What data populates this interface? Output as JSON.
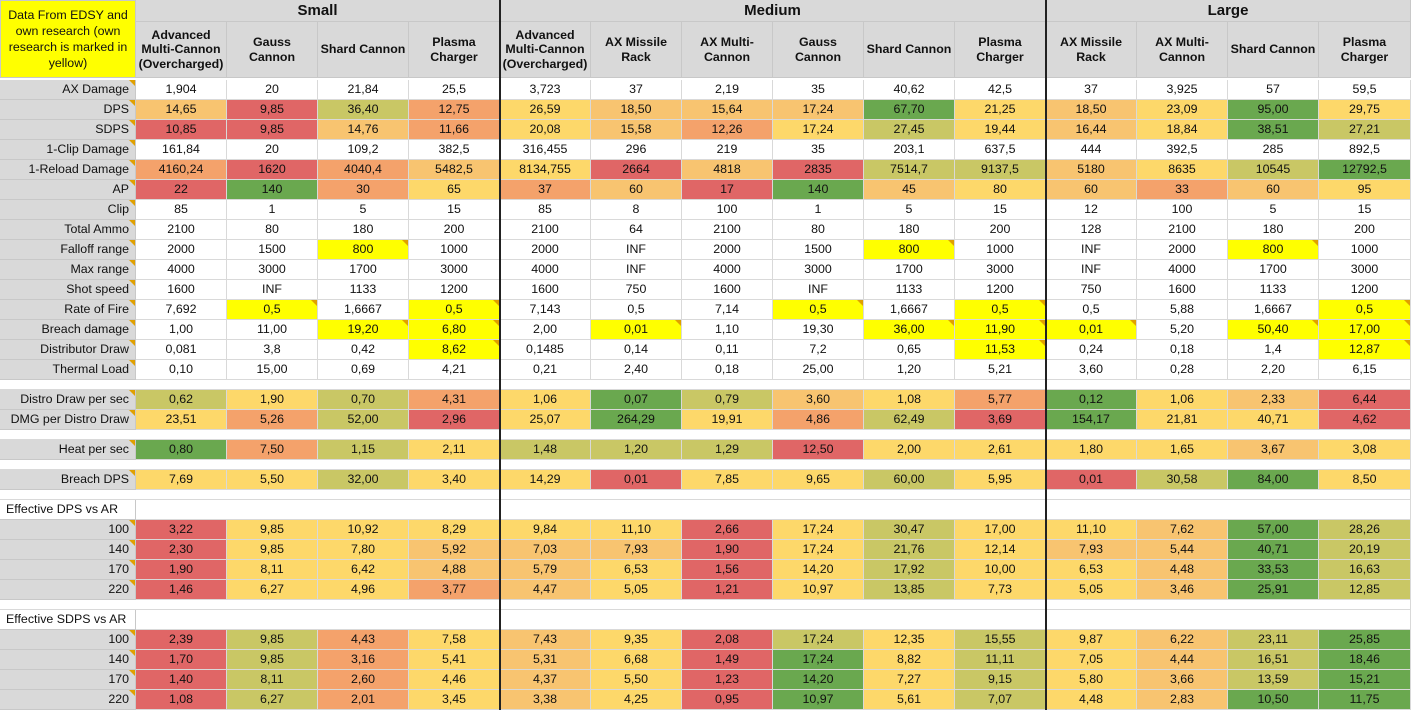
{
  "note": "Data From EDSY and own research (own research is marked in yellow)",
  "groups": [
    {
      "name": "Small",
      "span": 4
    },
    {
      "name": "Medium",
      "span": 6
    },
    {
      "name": "Large",
      "span": 4
    }
  ],
  "weapons": [
    "Advanced Multi-Cannon (Overcharged)",
    "Gauss Cannon",
    "Shard Cannon",
    "Plasma Charger",
    "Advanced Multi-Cannon (Overcharged)",
    "AX Missile Rack",
    "AX Multi-Cannon",
    "Gauss Cannon",
    "Shard Cannon",
    "Plasma Charger",
    "AX Missile Rack",
    "AX Multi-Cannon",
    "Shard Cannon",
    "Plasma Charger"
  ],
  "colors": {
    "red": "#e06666",
    "orange": "#f4a26b",
    "lorange": "#f8c470",
    "yellow": "#fdd86a",
    "lgreen": "#c9c765",
    "green": "#6aa84f",
    "hl": "#ffff00"
  },
  "rows": [
    {
      "type": "data",
      "label": "AX Damage",
      "values": [
        "1,904",
        "20",
        "21,84",
        "25,5",
        "3,723",
        "37",
        "2,19",
        "35",
        "40,62",
        "42,5",
        "37",
        "3,925",
        "57",
        "59,5"
      ]
    },
    {
      "type": "data",
      "label": "DPS",
      "values": [
        "14,65",
        "9,85",
        "36,40",
        "12,75",
        "26,59",
        "18,50",
        "15,64",
        "17,24",
        "67,70",
        "21,25",
        "18,50",
        "23,09",
        "95,00",
        "29,75"
      ],
      "colors": [
        "lorange",
        "red",
        "lgreen",
        "orange",
        "yellow",
        "lorange",
        "lorange",
        "lorange",
        "green",
        "yellow",
        "lorange",
        "yellow",
        "green",
        "yellow"
      ]
    },
    {
      "type": "data",
      "label": "SDPS",
      "values": [
        "10,85",
        "9,85",
        "14,76",
        "11,66",
        "20,08",
        "15,58",
        "12,26",
        "17,24",
        "27,45",
        "19,44",
        "16,44",
        "18,84",
        "38,51",
        "27,21"
      ],
      "colors": [
        "red",
        "red",
        "lorange",
        "orange",
        "yellow",
        "lorange",
        "orange",
        "yellow",
        "lgreen",
        "yellow",
        "lorange",
        "yellow",
        "green",
        "lgreen"
      ]
    },
    {
      "type": "data",
      "label": "1-Clip Damage",
      "values": [
        "161,84",
        "20",
        "109,2",
        "382,5",
        "316,455",
        "296",
        "219",
        "35",
        "203,1",
        "637,5",
        "444",
        "392,5",
        "285",
        "892,5"
      ]
    },
    {
      "type": "data",
      "label": "1-Reload Damage",
      "values": [
        "4160,24",
        "1620",
        "4040,4",
        "5482,5",
        "8134,755",
        "2664",
        "4818",
        "2835",
        "7514,7",
        "9137,5",
        "5180",
        "8635",
        "10545",
        "12792,5"
      ],
      "colors": [
        "orange",
        "red",
        "orange",
        "lorange",
        "yellow",
        "red",
        "lorange",
        "red",
        "lgreen",
        "lgreen",
        "lorange",
        "yellow",
        "lgreen",
        "green"
      ]
    },
    {
      "type": "data",
      "label": "AP",
      "values": [
        "22",
        "140",
        "30",
        "65",
        "37",
        "60",
        "17",
        "140",
        "45",
        "80",
        "60",
        "33",
        "60",
        "95"
      ],
      "colors": [
        "red",
        "green",
        "orange",
        "yellow",
        "orange",
        "lorange",
        "red",
        "green",
        "lorange",
        "yellow",
        "lorange",
        "orange",
        "lorange",
        "yellow"
      ]
    },
    {
      "type": "data",
      "label": "Clip",
      "values": [
        "85",
        "1",
        "5",
        "15",
        "85",
        "8",
        "100",
        "1",
        "5",
        "15",
        "12",
        "100",
        "5",
        "15"
      ]
    },
    {
      "type": "data",
      "label": "Total Ammo",
      "values": [
        "2100",
        "80",
        "180",
        "200",
        "2100",
        "64",
        "2100",
        "80",
        "180",
        "200",
        "128",
        "2100",
        "180",
        "200"
      ]
    },
    {
      "type": "data",
      "label": "Falloff range",
      "values": [
        "2000",
        "1500",
        "800",
        "1000",
        "2000",
        "INF",
        "2000",
        "1500",
        "800",
        "1000",
        "INF",
        "2000",
        "800",
        "1000"
      ],
      "hl": [
        2,
        8,
        12
      ]
    },
    {
      "type": "data",
      "label": "Max range",
      "values": [
        "4000",
        "3000",
        "1700",
        "3000",
        "4000",
        "INF",
        "4000",
        "3000",
        "1700",
        "3000",
        "INF",
        "4000",
        "1700",
        "3000"
      ]
    },
    {
      "type": "data",
      "label": "Shot speed",
      "values": [
        "1600",
        "INF",
        "1133",
        "1200",
        "1600",
        "750",
        "1600",
        "INF",
        "1133",
        "1200",
        "750",
        "1600",
        "1133",
        "1200"
      ]
    },
    {
      "type": "data",
      "label": "Rate of Fire",
      "values": [
        "7,692",
        "0,5",
        "1,6667",
        "0,5",
        "7,143",
        "0,5",
        "7,14",
        "0,5",
        "1,6667",
        "0,5",
        "0,5",
        "5,88",
        "1,6667",
        "0,5"
      ],
      "hl": [
        1,
        3,
        7,
        9,
        13
      ]
    },
    {
      "type": "data",
      "label": "Breach damage",
      "values": [
        "1,00",
        "11,00",
        "19,20",
        "6,80",
        "2,00",
        "0,01",
        "1,10",
        "19,30",
        "36,00",
        "11,90",
        "0,01",
        "5,20",
        "50,40",
        "17,00"
      ],
      "hl": [
        2,
        3,
        5,
        8,
        9,
        10,
        12,
        13
      ]
    },
    {
      "type": "data",
      "label": "Distributor Draw",
      "values": [
        "0,081",
        "3,8",
        "0,42",
        "8,62",
        "0,1485",
        "0,14",
        "0,11",
        "7,2",
        "0,65",
        "11,53",
        "0,24",
        "0,18",
        "1,4",
        "12,87"
      ],
      "hl": [
        3,
        9,
        13
      ]
    },
    {
      "type": "data",
      "label": "Thermal Load",
      "values": [
        "0,10",
        "15,00",
        "0,69",
        "4,21",
        "0,21",
        "2,40",
        "0,18",
        "25,00",
        "1,20",
        "5,21",
        "3,60",
        "0,28",
        "2,20",
        "6,15"
      ]
    },
    {
      "type": "blank"
    },
    {
      "type": "data",
      "label": "Distro Draw per sec",
      "values": [
        "0,62",
        "1,90",
        "0,70",
        "4,31",
        "1,06",
        "0,07",
        "0,79",
        "3,60",
        "1,08",
        "5,77",
        "0,12",
        "1,06",
        "2,33",
        "6,44"
      ],
      "colors": [
        "lgreen",
        "yellow",
        "lgreen",
        "orange",
        "yellow",
        "green",
        "lgreen",
        "lorange",
        "yellow",
        "orange",
        "green",
        "yellow",
        "lorange",
        "red"
      ]
    },
    {
      "type": "data",
      "label": "DMG per Distro Draw",
      "values": [
        "23,51",
        "5,26",
        "52,00",
        "2,96",
        "25,07",
        "264,29",
        "19,91",
        "4,86",
        "62,49",
        "3,69",
        "154,17",
        "21,81",
        "40,71",
        "4,62"
      ],
      "colors": [
        "yellow",
        "orange",
        "lgreen",
        "red",
        "yellow",
        "green",
        "yellow",
        "orange",
        "lgreen",
        "red",
        "green",
        "yellow",
        "yellow",
        "red"
      ]
    },
    {
      "type": "blank"
    },
    {
      "type": "data",
      "label": "Heat per sec",
      "values": [
        "0,80",
        "7,50",
        "1,15",
        "2,11",
        "1,48",
        "1,20",
        "1,29",
        "12,50",
        "2,00",
        "2,61",
        "1,80",
        "1,65",
        "3,67",
        "3,08"
      ],
      "colors": [
        "green",
        "orange",
        "lgreen",
        "yellow",
        "lgreen",
        "lgreen",
        "lgreen",
        "red",
        "yellow",
        "yellow",
        "yellow",
        "yellow",
        "lorange",
        "yellow"
      ]
    },
    {
      "type": "blank"
    },
    {
      "type": "data",
      "label": "Breach DPS",
      "values": [
        "7,69",
        "5,50",
        "32,00",
        "3,40",
        "14,29",
        "0,01",
        "7,85",
        "9,65",
        "60,00",
        "5,95",
        "0,01",
        "30,58",
        "84,00",
        "8,50"
      ],
      "colors": [
        "yellow",
        "yellow",
        "lgreen",
        "yellow",
        "yellow",
        "red",
        "yellow",
        "yellow",
        "lgreen",
        "yellow",
        "red",
        "lgreen",
        "green",
        "yellow"
      ]
    },
    {
      "type": "blank"
    },
    {
      "type": "section",
      "label": "Effective DPS vs AR"
    },
    {
      "type": "data",
      "label": "100",
      "values": [
        "3,22",
        "9,85",
        "10,92",
        "8,29",
        "9,84",
        "11,10",
        "2,66",
        "17,24",
        "30,47",
        "17,00",
        "11,10",
        "7,62",
        "57,00",
        "28,26"
      ],
      "colors": [
        "red",
        "yellow",
        "yellow",
        "yellow",
        "yellow",
        "yellow",
        "red",
        "yellow",
        "lgreen",
        "yellow",
        "yellow",
        "lorange",
        "green",
        "lgreen"
      ]
    },
    {
      "type": "data",
      "label": "140",
      "values": [
        "2,30",
        "9,85",
        "7,80",
        "5,92",
        "7,03",
        "7,93",
        "1,90",
        "17,24",
        "21,76",
        "12,14",
        "7,93",
        "5,44",
        "40,71",
        "20,19"
      ],
      "colors": [
        "red",
        "yellow",
        "yellow",
        "lorange",
        "lorange",
        "lorange",
        "red",
        "yellow",
        "lgreen",
        "yellow",
        "lorange",
        "lorange",
        "green",
        "lgreen"
      ]
    },
    {
      "type": "data",
      "label": "170",
      "values": [
        "1,90",
        "8,11",
        "6,42",
        "4,88",
        "5,79",
        "6,53",
        "1,56",
        "14,20",
        "17,92",
        "10,00",
        "6,53",
        "4,48",
        "33,53",
        "16,63"
      ],
      "colors": [
        "red",
        "yellow",
        "yellow",
        "lorange",
        "lorange",
        "yellow",
        "red",
        "yellow",
        "lgreen",
        "yellow",
        "yellow",
        "lorange",
        "green",
        "lgreen"
      ]
    },
    {
      "type": "data",
      "label": "220",
      "values": [
        "1,46",
        "6,27",
        "4,96",
        "3,77",
        "4,47",
        "5,05",
        "1,21",
        "10,97",
        "13,85",
        "7,73",
        "5,05",
        "3,46",
        "25,91",
        "12,85"
      ],
      "colors": [
        "red",
        "yellow",
        "yellow",
        "orange",
        "lorange",
        "yellow",
        "red",
        "yellow",
        "lgreen",
        "yellow",
        "yellow",
        "lorange",
        "green",
        "lgreen"
      ]
    },
    {
      "type": "blank"
    },
    {
      "type": "section",
      "label": "Effective SDPS vs AR"
    },
    {
      "type": "data",
      "label": "100",
      "values": [
        "2,39",
        "9,85",
        "4,43",
        "7,58",
        "7,43",
        "9,35",
        "2,08",
        "17,24",
        "12,35",
        "15,55",
        "9,87",
        "6,22",
        "23,11",
        "25,85"
      ],
      "colors": [
        "red",
        "lgreen",
        "orange",
        "yellow",
        "lorange",
        "yellow",
        "red",
        "lgreen",
        "yellow",
        "lgreen",
        "yellow",
        "lorange",
        "lgreen",
        "green"
      ]
    },
    {
      "type": "data",
      "label": "140",
      "values": [
        "1,70",
        "9,85",
        "3,16",
        "5,41",
        "5,31",
        "6,68",
        "1,49",
        "17,24",
        "8,82",
        "11,11",
        "7,05",
        "4,44",
        "16,51",
        "18,46"
      ],
      "colors": [
        "red",
        "lgreen",
        "orange",
        "yellow",
        "lorange",
        "yellow",
        "red",
        "green",
        "yellow",
        "lgreen",
        "yellow",
        "lorange",
        "lgreen",
        "green"
      ]
    },
    {
      "type": "data",
      "label": "170",
      "values": [
        "1,40",
        "8,11",
        "2,60",
        "4,46",
        "4,37",
        "5,50",
        "1,23",
        "14,20",
        "7,27",
        "9,15",
        "5,80",
        "3,66",
        "13,59",
        "15,21"
      ],
      "colors": [
        "red",
        "lgreen",
        "orange",
        "yellow",
        "lorange",
        "yellow",
        "red",
        "green",
        "yellow",
        "lgreen",
        "yellow",
        "lorange",
        "lgreen",
        "green"
      ]
    },
    {
      "type": "data",
      "label": "220",
      "values": [
        "1,08",
        "6,27",
        "2,01",
        "3,45",
        "3,38",
        "4,25",
        "0,95",
        "10,97",
        "5,61",
        "7,07",
        "4,48",
        "2,83",
        "10,50",
        "11,75"
      ],
      "colors": [
        "red",
        "lgreen",
        "orange",
        "yellow",
        "lorange",
        "yellow",
        "red",
        "green",
        "yellow",
        "lgreen",
        "yellow",
        "lorange",
        "green",
        "green"
      ]
    }
  ]
}
